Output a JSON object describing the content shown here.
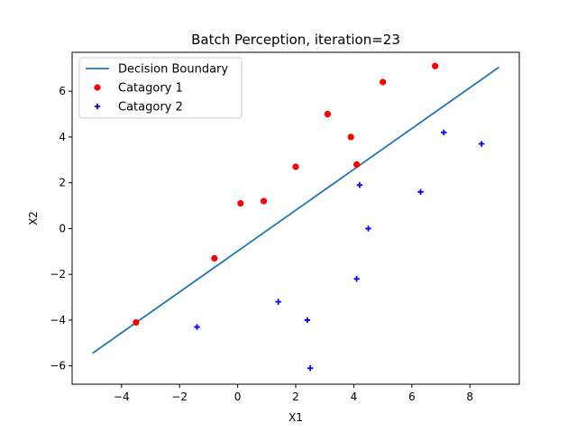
{
  "chart_data": {
    "type": "scatter",
    "title": "Batch Perception, iteration=23",
    "xlabel": "X1",
    "ylabel": "X2",
    "xlim": [
      -5.7,
      9.7
    ],
    "ylim": [
      -6.8,
      7.7
    ],
    "xticks": [
      -4,
      -2,
      0,
      2,
      4,
      6,
      8
    ],
    "yticks": [
      -6,
      -4,
      -2,
      0,
      2,
      4,
      6
    ],
    "xtick_labels": [
      "−4",
      "−2",
      "0",
      "2",
      "4",
      "6",
      "8"
    ],
    "ytick_labels": [
      "−6",
      "−4",
      "−2",
      "0",
      "2",
      "4",
      "6"
    ],
    "grid": false,
    "legend_position": "top-left",
    "series": [
      {
        "name": "Decision Boundary",
        "kind": "line",
        "color": "#1f77b4",
        "points": [
          [
            -5,
            -5.45
          ],
          [
            9,
            7.05
          ]
        ]
      },
      {
        "name": "Catagory 1",
        "kind": "scatter",
        "marker": "circle",
        "color": "#ff0000",
        "points": [
          [
            -3.5,
            -4.1
          ],
          [
            -0.8,
            -1.3
          ],
          [
            0.1,
            1.1
          ],
          [
            0.9,
            1.2
          ],
          [
            2.0,
            2.7
          ],
          [
            3.1,
            5.0
          ],
          [
            3.9,
            4.0
          ],
          [
            4.1,
            2.8
          ],
          [
            5.0,
            6.4
          ],
          [
            6.8,
            7.1
          ]
        ]
      },
      {
        "name": "Catagory 2",
        "kind": "scatter",
        "marker": "plus",
        "color": "#0000ff",
        "points": [
          [
            -1.4,
            -4.3
          ],
          [
            1.4,
            -3.2
          ],
          [
            2.4,
            -4.0
          ],
          [
            2.5,
            -6.1
          ],
          [
            4.1,
            -2.2
          ],
          [
            4.2,
            1.9
          ],
          [
            4.5,
            0.0
          ],
          [
            6.3,
            1.6
          ],
          [
            7.1,
            4.2
          ],
          [
            8.4,
            3.7
          ]
        ]
      }
    ]
  }
}
